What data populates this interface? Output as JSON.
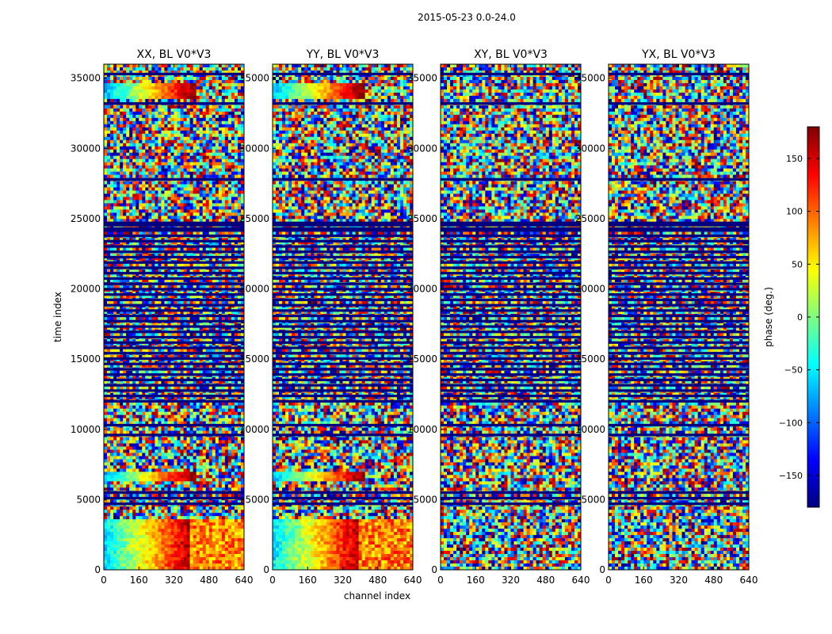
{
  "chart_data": {
    "type": "heatmap",
    "suptitle": "2015-05-23 0.0-24.0",
    "xlabel": "channel index",
    "ylabel": "time index",
    "xlim": [
      0,
      640
    ],
    "ylim": [
      0,
      36000
    ],
    "xticks": [
      "0",
      "160",
      "320",
      "480",
      "640"
    ],
    "yticks": [
      "0",
      "5000",
      "10000",
      "15000",
      "20000",
      "25000",
      "30000",
      "35000"
    ],
    "colormap": "jet",
    "colorbar": {
      "label": "phase (deg.)",
      "range": [
        -180,
        180
      ],
      "ticks": [
        "150",
        "100",
        "50",
        "0",
        "−50",
        "−100",
        "−150"
      ],
      "tick_values": [
        150,
        100,
        50,
        0,
        -50,
        -100,
        -150
      ]
    },
    "panels": [
      {
        "title": "XX, BL V0*V3",
        "bands": [
          [
            33500,
            34700,
            "blue-red"
          ],
          [
            6200,
            7000,
            "blue-red"
          ],
          [
            0,
            3600,
            "blue-red-yellow"
          ]
        ]
      },
      {
        "title": "YY, BL V0*V3",
        "bands": [
          [
            33500,
            34700,
            "blue-red"
          ],
          [
            6200,
            7000,
            "blue-red"
          ],
          [
            0,
            3600,
            "blue-red-yellow"
          ]
        ]
      },
      {
        "title": "XY, BL V0*V3",
        "bands": []
      },
      {
        "title": "YX, BL V0*V3",
        "bands": []
      }
    ]
  }
}
